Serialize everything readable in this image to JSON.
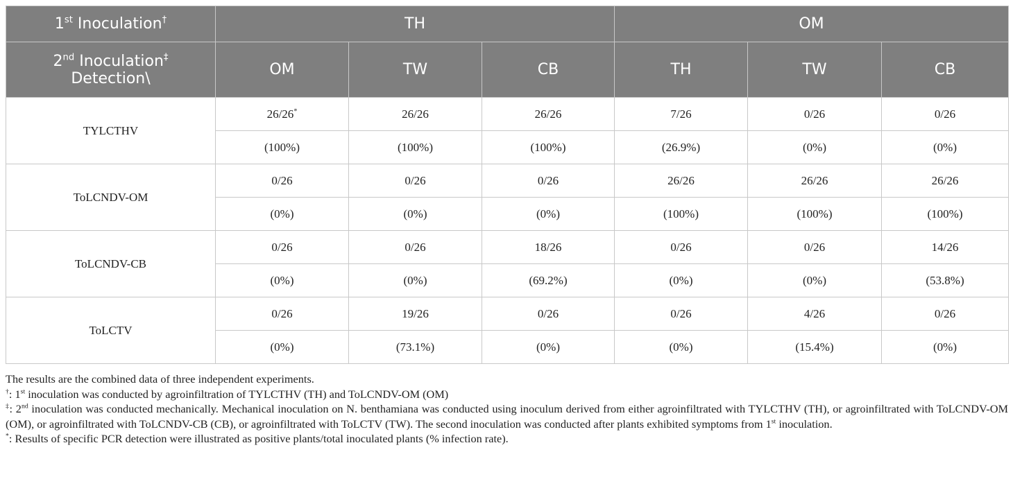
{
  "header": {
    "row1": {
      "label": [
        "1",
        "st",
        " Inoculation",
        "†"
      ],
      "groups": [
        "TH",
        "OM"
      ]
    },
    "row2": {
      "label": [
        "2",
        "nd",
        " Inoculation",
        "‡"
      ],
      "label_line2": "Detection\\",
      "columns": [
        "OM",
        "TW",
        "CB",
        "TH",
        "TW",
        "CB"
      ]
    }
  },
  "rows": [
    {
      "name": "TYLCTHV",
      "counts": [
        "26/26",
        "26/26",
        "26/26",
        "7/26",
        "0/26",
        "0/26"
      ],
      "count_note": "*",
      "percents": [
        "(100%)",
        "(100%)",
        "(100%)",
        "(26.9%)",
        "(0%)",
        "(0%)"
      ]
    },
    {
      "name": "ToLCNDV-OM",
      "counts": [
        "0/26",
        "0/26",
        "0/26",
        "26/26",
        "26/26",
        "26/26"
      ],
      "percents": [
        "(0%)",
        "(0%)",
        "(0%)",
        "(100%)",
        "(100%)",
        "(100%)"
      ]
    },
    {
      "name": "ToLCNDV-CB",
      "counts": [
        "0/26",
        "0/26",
        "18/26",
        "0/26",
        "0/26",
        "14/26"
      ],
      "percents": [
        "(0%)",
        "(0%)",
        "(69.2%)",
        "(0%)",
        "(0%)",
        "(53.8%)"
      ]
    },
    {
      "name": "ToLCTV",
      "counts": [
        "0/26",
        "19/26",
        "0/26",
        "0/26",
        "4/26",
        "0/26"
      ],
      "percents": [
        "(0%)",
        "(73.1%)",
        "(0%)",
        "(0%)",
        "(15.4%)",
        "(0%)"
      ]
    }
  ],
  "footnotes": [
    {
      "mark": "",
      "text": [
        "The results are the combined data of three independent experiments."
      ]
    },
    {
      "mark": "†",
      "text": [
        ": 1",
        "st",
        " inoculation was conducted by agroinfiltration of TYLCTHV (TH) and ToLCNDV-OM (OM)"
      ]
    },
    {
      "mark": "‡",
      "text": [
        ": 2",
        "nd",
        " inoculation was conducted mechanically. Mechanical inoculation on N. benthamiana was conducted using inoculum derived from either agroinfiltrated with TYLCTHV (TH), or agroinfiltrated with ToLCNDV-OM (OM), or agroinfiltrated with ToLCNDV-CB (CB), or agroinfiltrated with ToLCTV (TW). The second inoculation was conducted after plants exhibited symptoms from 1",
        "st",
        " inoculation."
      ]
    },
    {
      "mark": "*",
      "text": [
        ": Results of specific PCR detection were illustrated as positive plants/total inoculated plants (% infection rate)."
      ]
    }
  ]
}
